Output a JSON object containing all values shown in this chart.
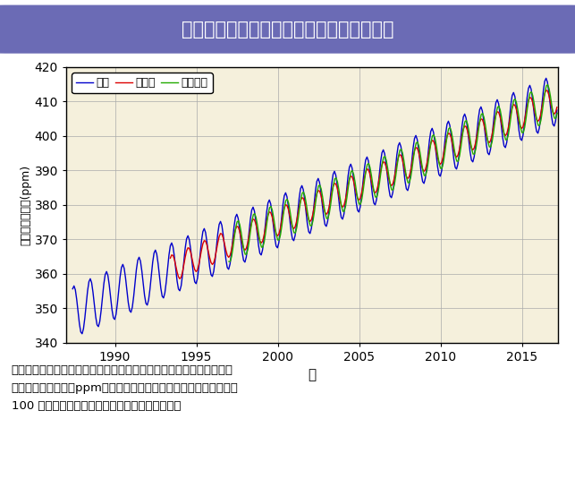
{
  "title": "国内の大気中の二酸化炭素濃度の経年変化",
  "ylabel": "二酸化炭素濃度(ppm)",
  "xlabel": "年",
  "ylim": [
    340,
    420
  ],
  "xlim": [
    1987.0,
    2017.2
  ],
  "yticks": [
    340,
    350,
    360,
    370,
    380,
    390,
    400,
    410,
    420
  ],
  "xticks": [
    1990,
    1995,
    2000,
    2005,
    2010,
    2015
  ],
  "legend_labels": [
    "綾里",
    "南鳥島",
    "与那国島"
  ],
  "line_colors": [
    "#0000CC",
    "#DD0000",
    "#22AA00"
  ],
  "plot_bg_color": "#F5F0DC",
  "fig_bg_color": "#FFFFFF",
  "title_bg_color": "#6B6BB5",
  "title_text_color": "#FFFFFF",
  "caption": "気象庁が綾里、南鳥島、与那国島で観測した大気中の二酸化炭素月平\n均濃度の経年変化。ppm（ピーピーエム）は、二酸化炭素が全体の\n100 万分の１の体積を占めることを意味します。",
  "base_co2_1987": 349.0,
  "trend_per_year": 2.08,
  "ayasato_start": 1987.4,
  "minami_start": 1993.4,
  "yonaguni_start": 1997.0,
  "end_year": 2017.2,
  "amp_ayasato": 7.5,
  "amp_minami": 4.0,
  "amp_yonaguni": 5.5,
  "phase_ayasato": 0.08,
  "phase_minami": 0.05,
  "phase_yonaguni": 0.0
}
